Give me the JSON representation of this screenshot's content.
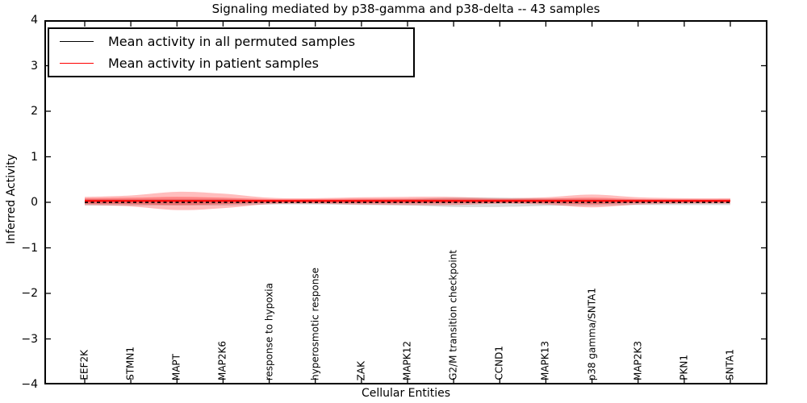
{
  "title": "Signaling mediated by p38-gamma and p38-delta -- 43 samples",
  "legend": {
    "items": [
      {
        "label": "Mean activity in all permuted samples",
        "color": "#000000"
      },
      {
        "label": "Mean activity in patient samples",
        "color": "#ff0000"
      }
    ]
  },
  "axes": {
    "xlabel": "Cellular Entities",
    "ylabel": "Inferred Activity",
    "yticks": [
      4,
      3,
      2,
      1,
      0,
      -1,
      -2,
      -3,
      -4
    ]
  },
  "chart_data": {
    "type": "line",
    "title": "Signaling mediated by p38-gamma and p38-delta -- 43 samples",
    "xlabel": "Cellular Entities",
    "ylabel": "Inferred Activity",
    "ylim": [
      -4,
      4
    ],
    "grid": false,
    "legend_position": "upper left",
    "categories": [
      "EEF2K",
      "STMN1",
      "MAPT",
      "MAP2K6",
      "response to hypoxia",
      "hyperosmotic response",
      "ZAK",
      "MAPK12",
      "G2/M transition checkpoint",
      "CCND1",
      "MAPK13",
      "p38 gamma/SNTA1",
      "MAP2K3",
      "PKN1",
      "SNTA1"
    ],
    "series": [
      {
        "name": "Mean activity in all permuted samples",
        "color": "#000000",
        "style": "dashed",
        "width": 1.8,
        "values": [
          0,
          0,
          0,
          0,
          0,
          0,
          0,
          0,
          0,
          0,
          0,
          0,
          0,
          0,
          0
        ]
      },
      {
        "name": "Mean activity in patient samples",
        "color": "#ff0000",
        "style": "solid",
        "width": 2,
        "values": [
          0.03,
          0.03,
          0.03,
          0.03,
          0.03,
          0.03,
          0.03,
          0.03,
          0.03,
          0.03,
          0.03,
          0.03,
          0.03,
          0.03,
          0.03
        ]
      }
    ],
    "bands": [
      {
        "name": "permuted-samples-range",
        "color": "#808080",
        "alpha": 0.3,
        "center": 0,
        "half_widths": [
          0.07,
          0.07,
          0.07,
          0.07,
          0.05,
          0.05,
          0.06,
          0.07,
          0.1,
          0.1,
          0.08,
          0.07,
          0.06,
          0.06,
          0.06
        ]
      },
      {
        "name": "patient-samples-range-outer",
        "color": "#ff0000",
        "alpha": 0.26,
        "center": 0.03,
        "half_widths": [
          0.09,
          0.12,
          0.2,
          0.16,
          0.07,
          0.06,
          0.08,
          0.09,
          0.09,
          0.06,
          0.08,
          0.14,
          0.08,
          0.06,
          0.06
        ]
      },
      {
        "name": "patient-samples-range-inner",
        "color": "#ff0000",
        "alpha": 0.3,
        "center": 0.03,
        "half_widths": [
          0.06,
          0.07,
          0.09,
          0.07,
          0.04,
          0.04,
          0.05,
          0.05,
          0.05,
          0.04,
          0.05,
          0.07,
          0.04,
          0.035,
          0.035
        ]
      }
    ]
  }
}
